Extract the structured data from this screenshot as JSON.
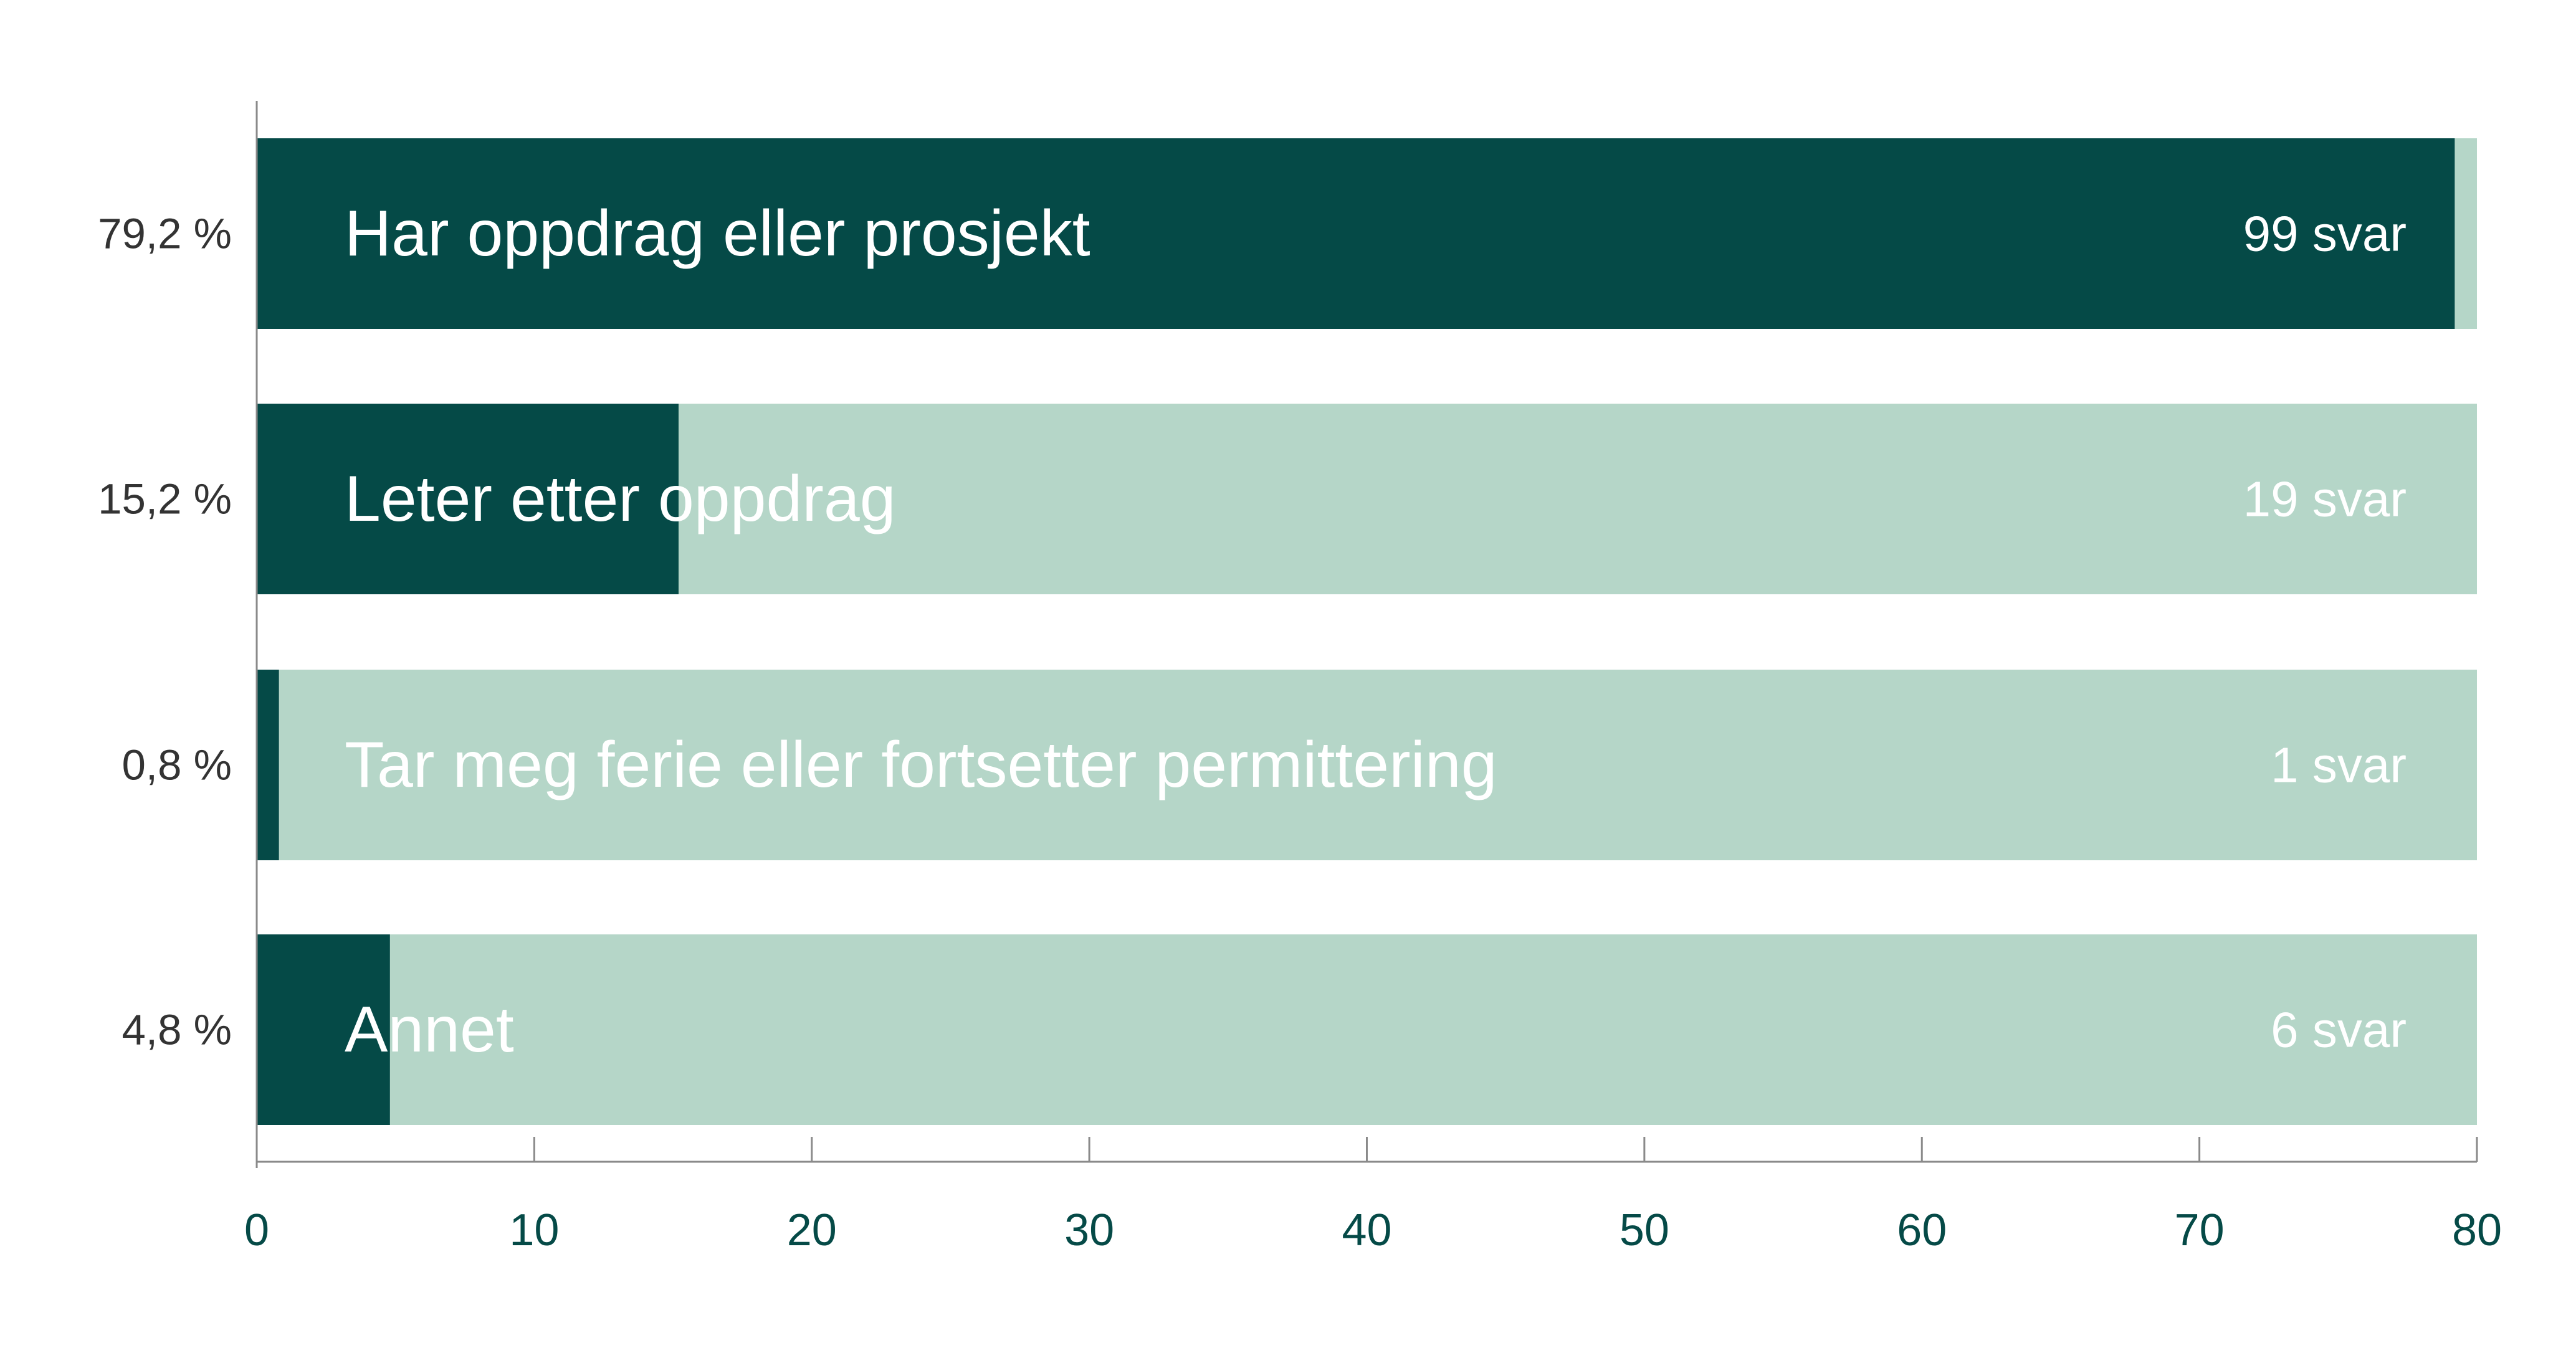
{
  "chart_data": {
    "type": "bar",
    "orientation": "horizontal",
    "categories": [
      "Har oppdrag eller prosjekt",
      "Leter etter oppdrag",
      "Tar meg ferie eller fortsetter permittering",
      "Annet"
    ],
    "values": [
      79.2,
      15.2,
      0.8,
      4.8
    ],
    "value_labels": [
      "79,2 %",
      "15,2 %",
      "0,8 %",
      "4,8 %"
    ],
    "counts": [
      "99 svar",
      "19 svar",
      "1 svar",
      "6 svar"
    ],
    "xlim": [
      0,
      80
    ],
    "xticks": [
      0,
      10,
      20,
      30,
      40,
      50,
      60,
      70,
      80
    ],
    "grid": false,
    "colors": {
      "value_fill": "#054a47",
      "track_fill": "#b5d6c8",
      "axis_line": "#8a8a8a",
      "tick_text": "#054a47",
      "percent_text": "#333333",
      "bar_text": "#ffffff"
    }
  }
}
